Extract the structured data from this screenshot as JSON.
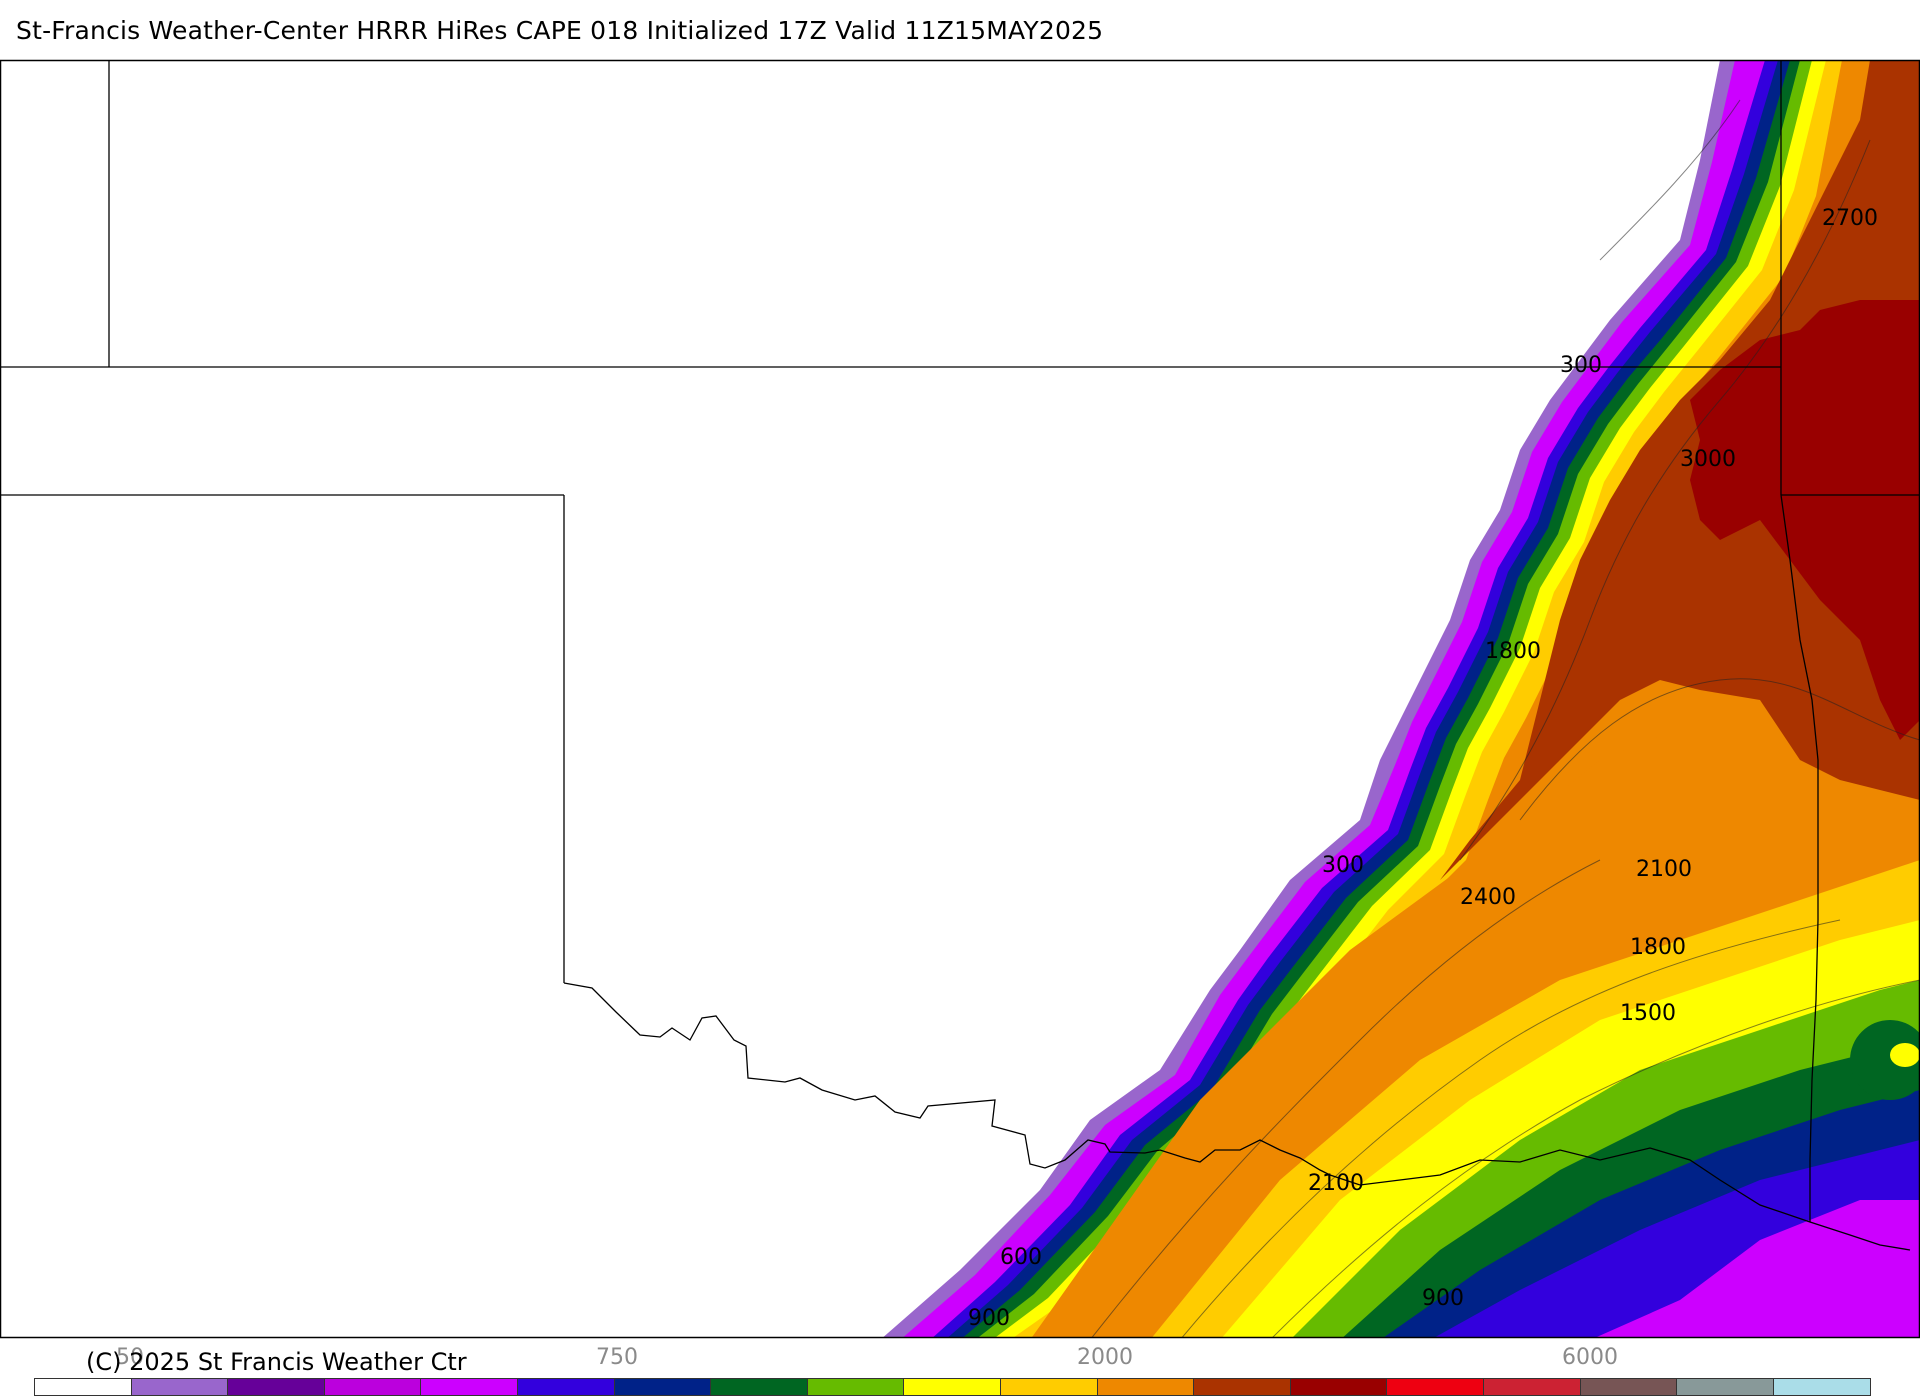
{
  "title": "St-Francis Weather-Center HRRR HiRes CAPE  018 Initialized  17Z Valid 11Z15MAY2025",
  "credit": "(C) 2025 St Francis Weather Ctr",
  "colorbar": {
    "colors": [
      "#ffffff",
      "#9966cc",
      "#660099",
      "#bb00dd",
      "#cc00ff",
      "#3300dd",
      "#002288",
      "#006622",
      "#66bb00",
      "#ffff00",
      "#ffcc00",
      "#ee8800",
      "#aa3300",
      "#990000",
      "#ee0011",
      "#cc2233",
      "#775555",
      "#889999",
      "#aadde8"
    ],
    "tick_labels": [
      "50",
      "750",
      "2000",
      "6000"
    ]
  },
  "contour_labels": [
    "2700",
    "300",
    "3000",
    "1800",
    "300",
    "2100",
    "2400",
    "1800",
    "1500",
    "2100",
    "600",
    "900",
    "900"
  ],
  "legend_icon": "color-scale"
}
